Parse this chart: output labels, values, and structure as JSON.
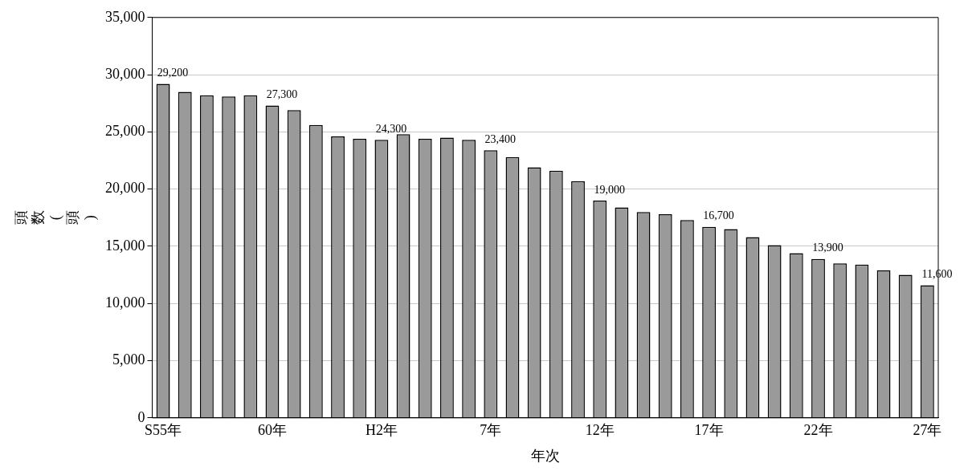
{
  "chart_data": {
    "type": "bar",
    "xlabel": "年次",
    "ylabel": "頭数(頭)",
    "categories": [
      "S55年",
      null,
      null,
      null,
      null,
      "60年",
      null,
      null,
      null,
      null,
      "H2年",
      null,
      null,
      null,
      null,
      "7年",
      null,
      null,
      null,
      null,
      "12年",
      null,
      null,
      null,
      null,
      "17年",
      null,
      null,
      null,
      null,
      "22年",
      null,
      null,
      null,
      null,
      "27年"
    ],
    "values": [
      29200,
      28500,
      28200,
      28100,
      28200,
      27300,
      26900,
      25600,
      24600,
      24400,
      24300,
      24800,
      24400,
      24500,
      24300,
      23400,
      22800,
      21900,
      21600,
      20700,
      19000,
      18400,
      18000,
      17800,
      17300,
      16700,
      16500,
      15800,
      15100,
      14400,
      13900,
      13500,
      13400,
      12900,
      12500,
      11600
    ],
    "value_labels": [
      "29,200",
      null,
      null,
      null,
      null,
      "27,300",
      null,
      null,
      null,
      null,
      "24,300",
      null,
      null,
      null,
      null,
      "23,400",
      null,
      null,
      null,
      null,
      "19,000",
      null,
      null,
      null,
      null,
      "16,700",
      null,
      null,
      null,
      null,
      "13,900",
      null,
      null,
      null,
      null,
      "11,600"
    ],
    "color": "#9a9a9a",
    "ylim": [
      0,
      35000
    ],
    "yticks": [
      0,
      {
        "value": 5000,
        "label": "5,000"
      },
      {
        "value": 10000,
        "label": "10,000"
      },
      {
        "value": 15000,
        "label": "15,000"
      },
      {
        "value": 20000,
        "label": "20,000"
      },
      {
        "value": 25000,
        "label": "25,000"
      },
      {
        "value": 30000,
        "label": "30,000"
      },
      {
        "value": 35000,
        "label": "35,000"
      }
    ],
    "grid": "y",
    "legend": false
  }
}
